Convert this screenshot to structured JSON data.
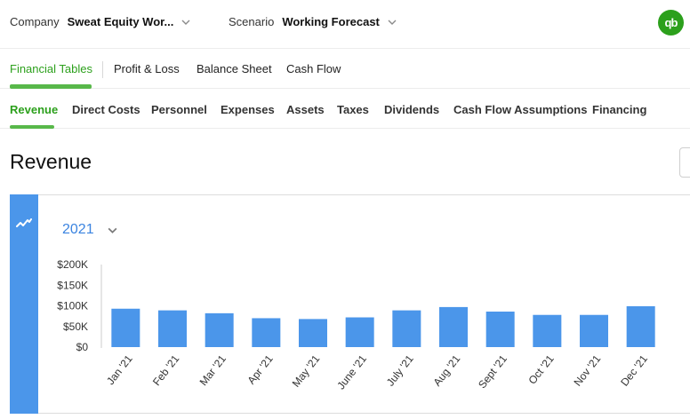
{
  "header": {
    "company_label": "Company",
    "company_value": "Sweat Equity Wor...",
    "scenario_label": "Scenario",
    "scenario_value": "Working Forecast",
    "logo_text": "qb"
  },
  "primary_tabs": [
    {
      "label": "Financial Tables",
      "active": true
    },
    {
      "label": "Profit & Loss",
      "active": false
    },
    {
      "label": "Balance Sheet",
      "active": false
    },
    {
      "label": "Cash Flow",
      "active": false
    }
  ],
  "secondary_tabs": [
    {
      "label": "Revenue",
      "active": true
    },
    {
      "label": "Direct Costs",
      "active": false
    },
    {
      "label": "Personnel",
      "active": false
    },
    {
      "label": "Expenses",
      "active": false
    },
    {
      "label": "Assets",
      "active": false
    },
    {
      "label": "Taxes",
      "active": false
    },
    {
      "label": "Dividends",
      "active": false
    },
    {
      "label": "Cash Flow Assumptions",
      "active": false
    },
    {
      "label": "Financing",
      "active": false
    }
  ],
  "page": {
    "title": "Revenue"
  },
  "year_selector": {
    "value": "2021"
  },
  "colors": {
    "accent_green": "#2ca01c",
    "bar_blue": "#4b96ea",
    "link_blue": "#3b84e0"
  },
  "chart_data": {
    "type": "bar",
    "categories": [
      "Jan '21",
      "Feb '21",
      "Mar '21",
      "Apr '21",
      "May '21",
      "June '21",
      "July '21",
      "Aug '21",
      "Sept '21",
      "Oct '21",
      "Nov '21",
      "Dec '21"
    ],
    "values": [
      93000,
      89000,
      82000,
      70000,
      68000,
      72000,
      89000,
      97000,
      86000,
      78000,
      78000,
      99000
    ],
    "yticks": [
      {
        "value": 0,
        "label": "$0"
      },
      {
        "value": 50000,
        "label": "$50K"
      },
      {
        "value": 100000,
        "label": "$100K"
      },
      {
        "value": 150000,
        "label": "$150K"
      },
      {
        "value": 200000,
        "label": "$200K"
      }
    ],
    "ylim": [
      0,
      200000
    ],
    "grid": false
  }
}
